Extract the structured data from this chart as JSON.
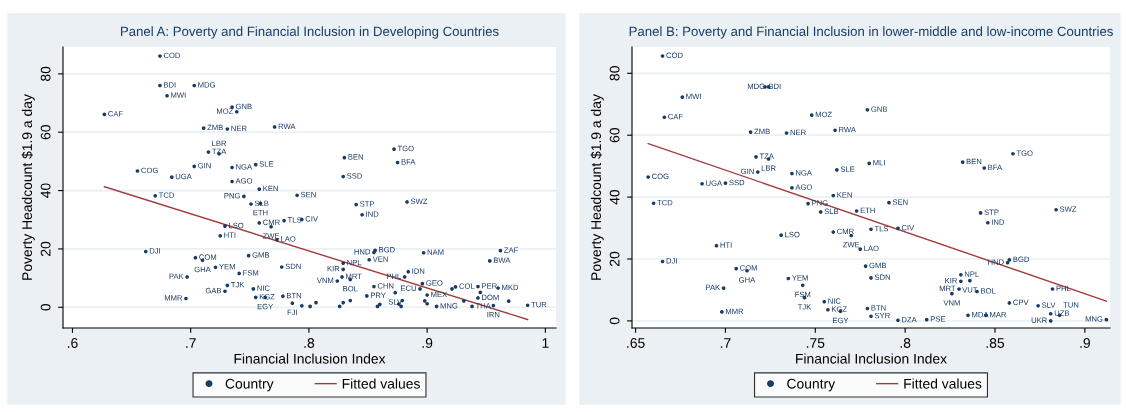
{
  "chart_data": [
    {
      "type": "scatter",
      "title": "Panel A: Poverty and Financial Inclusion in Developing Countries",
      "xlabel": "Financial Inclusion Index",
      "ylabel": "Poverty Headcount $1.9 a day",
      "xlim": [
        0.592,
        1.009
      ],
      "ylim": [
        -7.1,
        89.2
      ],
      "xticks": [
        {
          "value": 0.6,
          "label": ".6"
        },
        {
          "value": 0.7,
          "label": ".7"
        },
        {
          "value": 0.8,
          "label": ".8"
        },
        {
          "value": 0.9,
          "label": ".9"
        },
        {
          "value": 1,
          "label": "1"
        }
      ],
      "yticks": [
        0,
        20,
        40,
        60,
        80
      ],
      "grid": "y",
      "legend": "bottom",
      "series": [
        {
          "name": "Country",
          "type": "scatter",
          "marker": "circle",
          "color": "#1a3b63",
          "x": [
            0.674,
            0.674,
            0.703,
            0.68,
            0.627,
            0.735,
            0.739,
            0.711,
            0.731,
            0.771,
            0.715,
            0.724,
            0.703,
            0.735,
            0.755,
            0.655,
            0.684,
            0.735,
            0.758,
            0.67,
            0.745,
            0.79,
            0.751,
            0.759,
            0.758,
            0.779,
            0.794,
            0.768,
            0.729,
            0.725,
            0.773,
            0.662,
            0.749,
            0.704,
            0.71,
            0.721,
            0.777,
            0.741,
            0.697,
            0.731,
            0.729,
            0.753,
            0.696,
            0.755,
            0.763,
            0.778,
            0.786,
            0.83,
            0.872,
            0.875,
            0.829,
            0.84,
            0.845,
            0.883,
            0.856,
            0.855,
            0.897,
            0.962,
            0.953,
            0.851,
            0.829,
            0.829,
            0.828,
            0.824,
            0.835,
            0.884,
            0.881,
            0.896,
            0.894,
            0.9,
            0.924,
            0.943,
            0.96,
            0.855,
            0.873,
            0.849,
            0.943,
            0.938,
            0.956,
            0.985,
            0.908,
            0.921,
            0.945,
            0.931,
            0.969,
            0.806,
            0.829,
            0.835,
            0.86,
            0.876,
            0.879,
            0.898,
            0.9,
            0.801,
            0.826,
            0.858,
            0.878,
            0.794
          ],
          "values": [
            86.1,
            76.0,
            76.0,
            72.5,
            66.1,
            68.6,
            67.0,
            61.4,
            61.1,
            61.8,
            53.2,
            52.6,
            48.3,
            47.9,
            48.9,
            46.7,
            44.6,
            43.1,
            40.5,
            38.2,
            38.0,
            38.4,
            35.4,
            35.6,
            28.9,
            29.7,
            30.1,
            27.6,
            27.8,
            24.5,
            23.2,
            19.1,
            17.7,
            17.0,
            16.1,
            13.7,
            13.8,
            11.6,
            10.4,
            7.5,
            5.5,
            6.3,
            3.0,
            3.4,
            3.4,
            3.8,
            1.4,
            51.3,
            54.2,
            49.6,
            44.8,
            35.2,
            31.7,
            36.1,
            19.5,
            18.8,
            18.7,
            19.4,
            15.9,
            16.3,
            15.1,
            13.0,
            10.4,
            9.0,
            9.5,
            12.2,
            10.4,
            8.1,
            6.3,
            4.2,
            7.0,
            7.1,
            6.6,
            7.1,
            5.0,
            3.9,
            3.2,
            0.3,
            0.6,
            0.7,
            0.3,
            6.3,
            5.1,
            2.2,
            2.1,
            1.6,
            1.6,
            2.3,
            1.0,
            1.1,
            2.3,
            2.2,
            1.2,
            0.3,
            0.3,
            0.3,
            0.3,
            0.5
          ]
        },
        {
          "name": "Fitted values",
          "type": "line",
          "color": "#a33a3a",
          "x": [
            0.627,
            0.985
          ],
          "values": [
            41.3,
            -4.2
          ]
        }
      ],
      "annotations": [
        {
          "text": "COD",
          "x": 0.674,
          "y": 86.1
        },
        {
          "text": "BDI",
          "x": 0.674,
          "y": 76.0
        },
        {
          "text": "MDG",
          "x": 0.703,
          "y": 76.0
        },
        {
          "text": "MWI",
          "x": 0.68,
          "y": 72.5
        },
        {
          "text": "CAF",
          "x": 0.627,
          "y": 66.1
        },
        {
          "text": "GNB",
          "x": 0.735,
          "y": 68.6
        },
        {
          "text": "MOZ",
          "x": 0.739,
          "y": 67.0
        },
        {
          "text": "ZMB",
          "x": 0.711,
          "y": 61.4
        },
        {
          "text": "NER",
          "x": 0.731,
          "y": 61.1
        },
        {
          "text": "RWA",
          "x": 0.771,
          "y": 61.8
        },
        {
          "text": "TZA",
          "x": 0.715,
          "y": 53.2
        },
        {
          "text": "LBR",
          "x": 0.724,
          "y": 52.6
        },
        {
          "text": "GIN",
          "x": 0.703,
          "y": 48.3
        },
        {
          "text": "NGA",
          "x": 0.735,
          "y": 47.9
        },
        {
          "text": "SLE",
          "x": 0.755,
          "y": 48.9
        },
        {
          "text": "COG",
          "x": 0.655,
          "y": 46.7
        },
        {
          "text": "UGA",
          "x": 0.684,
          "y": 44.6
        },
        {
          "text": "AGO",
          "x": 0.735,
          "y": 43.1
        },
        {
          "text": "KEN",
          "x": 0.758,
          "y": 40.5
        },
        {
          "text": "TCD",
          "x": 0.67,
          "y": 38.2
        },
        {
          "text": "PNG",
          "x": 0.745,
          "y": 38.0
        },
        {
          "text": "SEN",
          "x": 0.79,
          "y": 38.4
        },
        {
          "text": "SLB",
          "x": 0.751,
          "y": 35.4
        },
        {
          "text": "ETH",
          "x": 0.759,
          "y": 35.6
        },
        {
          "text": "CMR",
          "x": 0.758,
          "y": 28.9
        },
        {
          "text": "TLS",
          "x": 0.779,
          "y": 29.7
        },
        {
          "text": "CIV",
          "x": 0.794,
          "y": 30.1
        },
        {
          "text": "ZWE",
          "x": 0.768,
          "y": 27.6
        },
        {
          "text": "LSO",
          "x": 0.729,
          "y": 27.8
        },
        {
          "text": "HTI",
          "x": 0.725,
          "y": 24.5
        },
        {
          "text": "LAO",
          "x": 0.773,
          "y": 23.2
        },
        {
          "text": "DJI",
          "x": 0.662,
          "y": 19.1
        },
        {
          "text": "GMB",
          "x": 0.749,
          "y": 17.7
        },
        {
          "text": "COM",
          "x": 0.704,
          "y": 17.0
        },
        {
          "text": "GHA",
          "x": 0.71,
          "y": 16.1
        },
        {
          "text": "YEM",
          "x": 0.721,
          "y": 13.7
        },
        {
          "text": "SDN",
          "x": 0.777,
          "y": 13.8
        },
        {
          "text": "FSM",
          "x": 0.741,
          "y": 11.6
        },
        {
          "text": "PAK",
          "x": 0.697,
          "y": 10.4
        },
        {
          "text": "TJK",
          "x": 0.731,
          "y": 7.5
        },
        {
          "text": "GAB",
          "x": 0.729,
          "y": 5.5
        },
        {
          "text": "NIC",
          "x": 0.753,
          "y": 6.3
        },
        {
          "text": "MMR",
          "x": 0.696,
          "y": 3.0
        },
        {
          "text": "KGZ",
          "x": 0.755,
          "y": 3.4
        },
        {
          "text": "EGY",
          "x": 0.763,
          "y": 3.4
        },
        {
          "text": "BTN",
          "x": 0.778,
          "y": 3.8
        },
        {
          "text": "FJI",
          "x": 0.786,
          "y": 1.4
        },
        {
          "text": "BEN",
          "x": 0.83,
          "y": 51.3
        },
        {
          "text": "TGO",
          "x": 0.872,
          "y": 54.2
        },
        {
          "text": "BFA",
          "x": 0.875,
          "y": 49.6
        },
        {
          "text": "SSD",
          "x": 0.829,
          "y": 44.8
        },
        {
          "text": "STP",
          "x": 0.84,
          "y": 35.2
        },
        {
          "text": "IND",
          "x": 0.845,
          "y": 31.7
        },
        {
          "text": "SWZ",
          "x": 0.883,
          "y": 36.1
        },
        {
          "text": "BGD",
          "x": 0.856,
          "y": 19.5
        },
        {
          "text": "HND",
          "x": 0.855,
          "y": 18.8
        },
        {
          "text": "NAM",
          "x": 0.897,
          "y": 18.7
        },
        {
          "text": "ZAF",
          "x": 0.962,
          "y": 19.4
        },
        {
          "text": "BWA",
          "x": 0.953,
          "y": 15.9
        },
        {
          "text": "VEN",
          "x": 0.851,
          "y": 16.3
        },
        {
          "text": "NPL",
          "x": 0.829,
          "y": 15.1
        },
        {
          "text": "KIR",
          "x": 0.829,
          "y": 13.0
        },
        {
          "text": "MRT",
          "x": 0.828,
          "y": 10.4
        },
        {
          "text": "VNM",
          "x": 0.824,
          "y": 9.0
        },
        {
          "text": "BOL",
          "x": 0.835,
          "y": 9.5
        },
        {
          "text": "IDN",
          "x": 0.884,
          "y": 12.2
        },
        {
          "text": "PHL",
          "x": 0.881,
          "y": 10.4
        },
        {
          "text": "GEO",
          "x": 0.896,
          "y": 8.1
        },
        {
          "text": "ECU",
          "x": 0.894,
          "y": 6.3
        },
        {
          "text": "MEX",
          "x": 0.9,
          "y": 4.2
        },
        {
          "text": "COL",
          "x": 0.924,
          "y": 7.0
        },
        {
          "text": "PER",
          "x": 0.943,
          "y": 7.1
        },
        {
          "text": "MKD",
          "x": 0.96,
          "y": 6.6
        },
        {
          "text": "CHN",
          "x": 0.855,
          "y": 7.1
        },
        {
          "text": "SLV",
          "x": 0.873,
          "y": 5.0
        },
        {
          "text": "PRY",
          "x": 0.849,
          "y": 3.9
        },
        {
          "text": "DOM",
          "x": 0.943,
          "y": 3.2
        },
        {
          "text": "THA",
          "x": 0.938,
          "y": 0.3
        },
        {
          "text": "IRN",
          "x": 0.956,
          "y": 0.6
        },
        {
          "text": "TUR",
          "x": 0.985,
          "y": 0.7
        },
        {
          "text": "MNG",
          "x": 0.908,
          "y": 0.3
        }
      ]
    },
    {
      "type": "scatter",
      "title": "Panel B: Poverty and Financial Inclusion in lower-middle and low-income Countries",
      "xlabel": "Financial Inclusion Index",
      "ylabel": "Poverty Headcount $1.9 a day",
      "xlim": [
        0.648,
        0.914
      ],
      "ylim": [
        -2.3,
        88.5
      ],
      "xticks": [
        {
          "value": 0.65,
          "label": ".65"
        },
        {
          "value": 0.7,
          "label": ".7"
        },
        {
          "value": 0.75,
          "label": ".75"
        },
        {
          "value": 0.8,
          "label": ".8"
        },
        {
          "value": 0.85,
          "label": ".85"
        },
        {
          "value": 0.9,
          "label": ".9"
        }
      ],
      "yticks": [
        0,
        20,
        40,
        60,
        80
      ],
      "grid": "y",
      "legend": "bottom",
      "series": [
        {
          "name": "Country",
          "type": "scatter",
          "marker": "circle",
          "color": "#1a3b63",
          "x": [
            0.665,
            0.722,
            0.724,
            0.676,
            0.666,
            0.748,
            0.779,
            0.714,
            0.734,
            0.761,
            0.717,
            0.724,
            0.718,
            0.737,
            0.762,
            0.78,
            0.657,
            0.687,
            0.7,
            0.737,
            0.76,
            0.66,
            0.746,
            0.753,
            0.773,
            0.791,
            0.832,
            0.86,
            0.844,
            0.842,
            0.846,
            0.884,
            0.781,
            0.796,
            0.76,
            0.77,
            0.731,
            0.775,
            0.695,
            0.665,
            0.858,
            0.857,
            0.778,
            0.781,
            0.706,
            0.712,
            0.735,
            0.743,
            0.699,
            0.744,
            0.755,
            0.757,
            0.764,
            0.698,
            0.779,
            0.781,
            0.796,
            0.812,
            0.831,
            0.831,
            0.836,
            0.83,
            0.826,
            0.84,
            0.835,
            0.845,
            0.858,
            0.874,
            0.882,
            0.881,
            0.886,
            0.881,
            0.912
          ],
          "values": [
            85.6,
            75.6,
            75.6,
            72.3,
            65.8,
            66.5,
            68.2,
            61.0,
            60.7,
            61.6,
            53.0,
            52.3,
            48.1,
            47.6,
            48.8,
            50.9,
            46.5,
            44.3,
            44.5,
            43.0,
            40.5,
            38.0,
            37.9,
            35.2,
            35.5,
            38.2,
            51.3,
            54.0,
            49.4,
            34.9,
            31.7,
            35.9,
            29.6,
            29.9,
            28.7,
            27.6,
            27.7,
            23.2,
            24.3,
            19.2,
            19.7,
            18.8,
            17.7,
            13.9,
            16.9,
            16.2,
            13.7,
            11.5,
            10.6,
            7.5,
            6.2,
            3.6,
            3.1,
            2.9,
            4.0,
            1.5,
            0.2,
            0.4,
            14.9,
            12.8,
            13.0,
            10.3,
            8.8,
            9.5,
            1.8,
            1.8,
            5.8,
            4.9,
            10.3,
            2.3,
            1.8,
            0.0,
            0.4
          ]
        },
        {
          "name": "Fitted values",
          "type": "line",
          "color": "#a33a3a",
          "x": [
            0.657,
            0.912
          ],
          "values": [
            57.3,
            6.4
          ]
        }
      ],
      "annotations": [
        {
          "text": "COD",
          "x": 0.665,
          "y": 85.6
        },
        {
          "text": "BDI",
          "x": 0.722,
          "y": 75.6
        },
        {
          "text": "MDG",
          "x": 0.724,
          "y": 75.6
        },
        {
          "text": "MWI",
          "x": 0.676,
          "y": 72.3
        },
        {
          "text": "CAF",
          "x": 0.666,
          "y": 65.8
        },
        {
          "text": "MOZ",
          "x": 0.748,
          "y": 66.5
        },
        {
          "text": "GNB",
          "x": 0.779,
          "y": 68.2
        },
        {
          "text": "ZMB",
          "x": 0.714,
          "y": 61.0
        },
        {
          "text": "NER",
          "x": 0.734,
          "y": 60.7
        },
        {
          "text": "RWA",
          "x": 0.761,
          "y": 61.6
        },
        {
          "text": "TZA",
          "x": 0.717,
          "y": 53.0
        },
        {
          "text": "LBR",
          "x": 0.724,
          "y": 52.3
        },
        {
          "text": "GIN",
          "x": 0.718,
          "y": 48.1
        },
        {
          "text": "NGA",
          "x": 0.737,
          "y": 47.6
        },
        {
          "text": "SLE",
          "x": 0.762,
          "y": 48.8
        },
        {
          "text": "MLI",
          "x": 0.78,
          "y": 50.9
        },
        {
          "text": "COG",
          "x": 0.657,
          "y": 46.5
        },
        {
          "text": "UGA",
          "x": 0.687,
          "y": 44.3
        },
        {
          "text": "SSD",
          "x": 0.7,
          "y": 44.5
        },
        {
          "text": "AGO",
          "x": 0.737,
          "y": 43.0
        },
        {
          "text": "KEN",
          "x": 0.76,
          "y": 40.5
        },
        {
          "text": "TCD",
          "x": 0.66,
          "y": 38.0
        },
        {
          "text": "PNG",
          "x": 0.746,
          "y": 37.9
        },
        {
          "text": "SLB",
          "x": 0.753,
          "y": 35.2
        },
        {
          "text": "ETH",
          "x": 0.773,
          "y": 35.5
        },
        {
          "text": "SEN",
          "x": 0.791,
          "y": 38.2
        },
        {
          "text": "BEN",
          "x": 0.832,
          "y": 51.3
        },
        {
          "text": "TGO",
          "x": 0.86,
          "y": 54.0
        },
        {
          "text": "BFA",
          "x": 0.844,
          "y": 49.4
        },
        {
          "text": "STP",
          "x": 0.842,
          "y": 34.9
        },
        {
          "text": "IND",
          "x": 0.846,
          "y": 31.7
        },
        {
          "text": "SWZ",
          "x": 0.884,
          "y": 35.9
        },
        {
          "text": "TLS",
          "x": 0.781,
          "y": 29.6
        },
        {
          "text": "CIV",
          "x": 0.796,
          "y": 29.9
        },
        {
          "text": "CMR",
          "x": 0.76,
          "y": 28.7
        },
        {
          "text": "ZWE",
          "x": 0.77,
          "y": 27.6
        },
        {
          "text": "LSO",
          "x": 0.731,
          "y": 27.7
        },
        {
          "text": "LAO",
          "x": 0.775,
          "y": 23.2
        },
        {
          "text": "HTI",
          "x": 0.695,
          "y": 24.3
        },
        {
          "text": "DJI",
          "x": 0.665,
          "y": 19.2
        },
        {
          "text": "BGD",
          "x": 0.858,
          "y": 19.7
        },
        {
          "text": "HND",
          "x": 0.857,
          "y": 18.8
        },
        {
          "text": "GMB",
          "x": 0.778,
          "y": 17.7
        },
        {
          "text": "SDN",
          "x": 0.781,
          "y": 13.9
        },
        {
          "text": "COM",
          "x": 0.706,
          "y": 16.9
        },
        {
          "text": "GHA",
          "x": 0.712,
          "y": 16.2
        },
        {
          "text": "YEM",
          "x": 0.735,
          "y": 13.7
        },
        {
          "text": "FSM",
          "x": 0.743,
          "y": 11.5
        },
        {
          "text": "PAK",
          "x": 0.699,
          "y": 10.6
        },
        {
          "text": "TJK",
          "x": 0.744,
          "y": 7.5
        },
        {
          "text": "NIC",
          "x": 0.755,
          "y": 6.2
        },
        {
          "text": "KGZ",
          "x": 0.757,
          "y": 3.6
        },
        {
          "text": "EGY",
          "x": 0.764,
          "y": 3.1
        },
        {
          "text": "MMR",
          "x": 0.698,
          "y": 2.9
        },
        {
          "text": "BTN",
          "x": 0.779,
          "y": 4.0
        },
        {
          "text": "SYR",
          "x": 0.781,
          "y": 1.5
        },
        {
          "text": "DZA",
          "x": 0.796,
          "y": 0.2
        },
        {
          "text": "PSE",
          "x": 0.812,
          "y": 0.4
        },
        {
          "text": "NPL",
          "x": 0.831,
          "y": 14.9
        },
        {
          "text": "KIR",
          "x": 0.831,
          "y": 12.8
        },
        {
          "text": "VUT",
          "x": 0.836,
          "y": 13.0
        },
        {
          "text": "MRT",
          "x": 0.83,
          "y": 10.3
        },
        {
          "text": "VNM",
          "x": 0.826,
          "y": 8.8
        },
        {
          "text": "BOL",
          "x": 0.84,
          "y": 9.5
        },
        {
          "text": "MDA",
          "x": 0.835,
          "y": 1.8
        },
        {
          "text": "MAR",
          "x": 0.845,
          "y": 1.8
        },
        {
          "text": "CPV",
          "x": 0.858,
          "y": 5.8
        },
        {
          "text": "SLV",
          "x": 0.874,
          "y": 4.9
        },
        {
          "text": "PHL",
          "x": 0.882,
          "y": 10.3
        },
        {
          "text": "UZB",
          "x": 0.881,
          "y": 2.3
        },
        {
          "text": "TUN",
          "x": 0.886,
          "y": 1.8
        },
        {
          "text": "UKR",
          "x": 0.881,
          "y": 0.0
        },
        {
          "text": "MNG",
          "x": 0.912,
          "y": 0.4
        }
      ]
    }
  ]
}
